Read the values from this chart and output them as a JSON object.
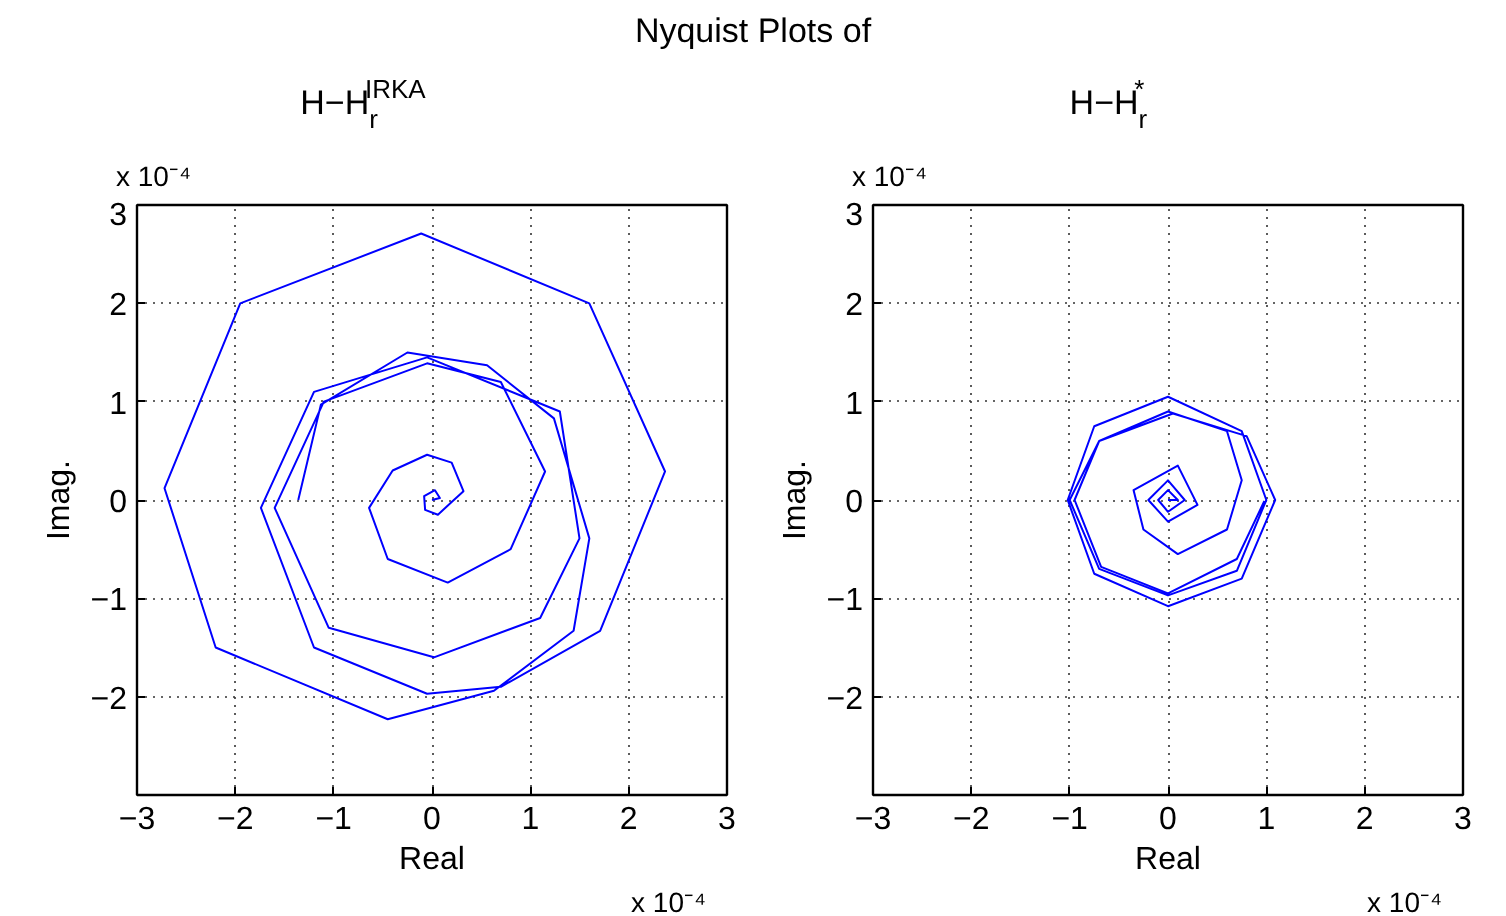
{
  "chart_data": [
    {
      "type": "line",
      "title": "Nyquist Plots of",
      "subtitle": "H−H$_{r}$$^{IRKA}$",
      "xlabel": "Real",
      "ylabel": "Imag.",
      "annotations": [
        "x 10⁻⁴",
        "x 10⁻⁴"
      ],
      "series": [
        {
          "color": "#0000ff",
          "x": [
            0,
            0.08,
            0.03,
            -0.08,
            -0.07,
            0.06,
            0.2,
            0.32,
            0.2,
            -0.05,
            -0.4,
            -0.64,
            -0.45,
            0.16,
            0.8,
            1.15,
            0.7,
            -0.05,
            -1.1,
            -1.6,
            -1.05,
            0.02,
            1.1,
            1.5,
            1.3,
            -0.05,
            -1.2,
            -1.74,
            -1.2,
            -0.05,
            0.7,
            1.71,
            2.37,
            1.6,
            -0.11,
            -1.95,
            -2.72,
            -2.2,
            -0.45,
            0.63,
            1.44,
            1.6,
            1.24,
            0.56,
            -0.25,
            -1.13,
            -1.36
          ],
          "values": [
            0,
            0.02,
            0.1,
            0.04,
            -0.1,
            -0.15,
            -0.02,
            0.09,
            0.38,
            0.46,
            0.3,
            -0.08,
            -0.6,
            -0.84,
            -0.5,
            0.29,
            1.2,
            1.39,
            1.0,
            -0.08,
            -1.3,
            -1.6,
            -1.2,
            -0.39,
            0.9,
            1.45,
            1.1,
            -0.08,
            -1.5,
            -1.97,
            -1.9,
            -1.33,
            0.29,
            2.0,
            2.71,
            2.0,
            0.12,
            -1.5,
            -2.23,
            -1.94,
            -1.33,
            -0.39,
            0.83,
            1.37,
            1.5,
            0.97,
            0
          ]
        }
      ],
      "xlim": [
        -3,
        3
      ],
      "ylim": [
        -3,
        3
      ],
      "xticks": [
        -3,
        -2,
        -1,
        0,
        1,
        2,
        3
      ],
      "yticks": [
        -2,
        -1,
        0,
        1,
        2,
        3
      ],
      "grid": true,
      "line_style": "solid"
    },
    {
      "type": "line",
      "title": "H−H$_{r}$$^{*}$",
      "xlabel": "Real",
      "ylabel": "Imag.",
      "annotations": [
        "x 10⁻⁴",
        "x 10⁻⁴"
      ],
      "series": [
        {
          "color": "#0000ff",
          "x": [
            0,
            0.1,
            0,
            -0.1,
            0,
            0.17,
            0,
            -0.2,
            0,
            0.3,
            0.1,
            -0.35,
            -0.25,
            0.1,
            0.6,
            0.75,
            0.6,
            0,
            -0.7,
            -1.0,
            -0.7,
            0,
            0.7,
            1.0,
            0.75,
            0,
            -0.75,
            -1.02,
            -0.75,
            0,
            0.75,
            1.09,
            0.8,
            0.05,
            -0.7,
            -0.95,
            -0.68,
            0,
            0.7,
            0.98
          ],
          "values": [
            0,
            0,
            0.1,
            0,
            -0.12,
            0,
            0.2,
            0,
            -0.22,
            -0.05,
            0.35,
            0.1,
            -0.3,
            -0.55,
            -0.3,
            0.2,
            0.7,
            0.9,
            0.6,
            0,
            -0.7,
            -0.97,
            -0.72,
            0,
            0.7,
            1.05,
            0.75,
            0,
            -0.75,
            -1.08,
            -0.8,
            0,
            0.65,
            0.88,
            0.6,
            0,
            -0.68,
            -0.95,
            -0.6,
            -0.01
          ]
        }
      ],
      "xlim": [
        -3,
        3
      ],
      "ylim": [
        -3,
        3
      ],
      "xticks": [
        -3,
        -2,
        -1,
        0,
        1,
        2,
        3
      ],
      "yticks": [
        -2,
        -1,
        0,
        1,
        2,
        3
      ],
      "grid": true,
      "line_style": "solid"
    }
  ]
}
